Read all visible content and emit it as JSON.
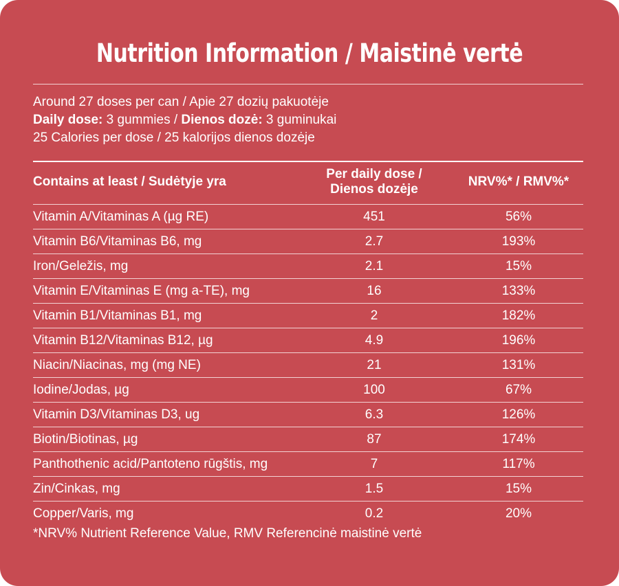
{
  "title": "Nutrition Information / Maistinė vertė",
  "intro": {
    "line1": "Around 27 doses per can / Apie 27 dozių pakuotėje",
    "line2": {
      "label_en": "Daily dose:",
      "value_en": " 3 gummies / ",
      "label_lt": "Dienos dozė:",
      "value_lt": " 3 guminukai"
    },
    "line3": "25 Calories per dose / 25 kalorijos dienos dozėje"
  },
  "table": {
    "headers": {
      "name": "Contains at least / Sudėtyje yra",
      "dose_line1": "Per daily dose /",
      "dose_line2": "Dienos dozėje",
      "nrv": "NRV%* / RMV%*"
    },
    "rows": [
      {
        "name": "Vitamin A/Vitaminas A (µg RE)",
        "dose": "451",
        "nrv": "56%"
      },
      {
        "name": "Vitamin B6/Vitaminas B6, mg",
        "dose": "2.7",
        "nrv": "193%"
      },
      {
        "name": "Iron/Geležis, mg",
        "dose": "2.1",
        "nrv": "15%"
      },
      {
        "name": "Vitamin E/Vitaminas E (mg a-TE), mg",
        "dose": "16",
        "nrv": "133%"
      },
      {
        "name": "Vitamin B1/Vitaminas B1, mg",
        "dose": "2",
        "nrv": "182%"
      },
      {
        "name": "Vitamin B12/Vitaminas B12, µg",
        "dose": "4.9",
        "nrv": "196%"
      },
      {
        "name": "Niacin/Niacinas, mg (mg NE)",
        "dose": "21",
        "nrv": "131%"
      },
      {
        "name": "Iodine/Jodas, µg",
        "dose": "100",
        "nrv": "67%"
      },
      {
        "name": "Vitamin D3/Vitaminas D3, ug",
        "dose": "6.3",
        "nrv": "126%"
      },
      {
        "name": "Biotin/Biotinas, µg",
        "dose": "87",
        "nrv": "174%"
      },
      {
        "name": "Panthothenic acid/Pantoteno rūgštis, mg",
        "dose": "7",
        "nrv": "117%"
      },
      {
        "name": "Zin/Cinkas, mg",
        "dose": "1.5",
        "nrv": "15%"
      },
      {
        "name": "Copper/Varis, mg",
        "dose": "0.2",
        "nrv": "20%"
      }
    ]
  },
  "footnote": "*NRV% Nutrient Reference Value, RMV Referencinė maistinė vertė",
  "colors": {
    "background": "#c74b52",
    "text": "#ffffff"
  }
}
